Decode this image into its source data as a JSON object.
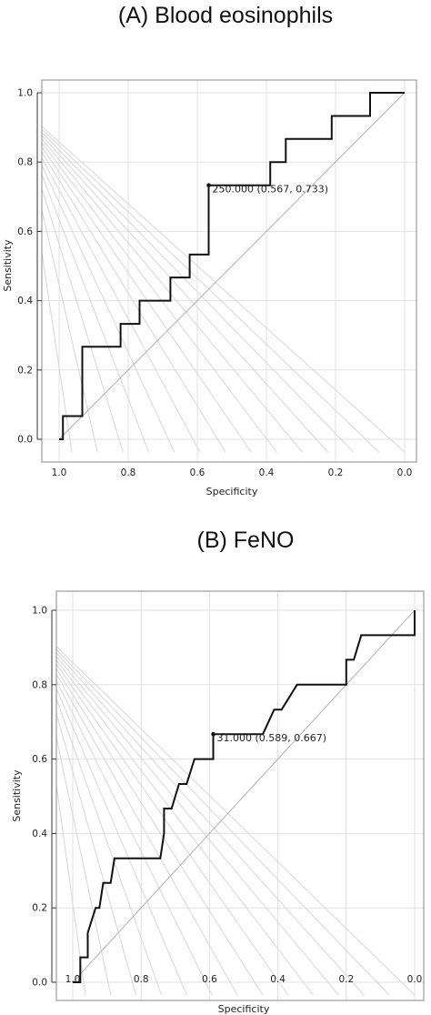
{
  "chart_data": [
    {
      "type": "line",
      "title": "(A) Blood eosinophils",
      "xlabel": "Specificity",
      "ylabel": "Sensitivity",
      "x_reversed": true,
      "xlim": [
        1.0,
        0.0
      ],
      "ylim": [
        0.0,
        1.0
      ],
      "x_ticks": [
        "1.0",
        "0.8",
        "0.6",
        "0.4",
        "0.2",
        "0.0"
      ],
      "y_ticks": [
        "0.0",
        "0.2",
        "0.4",
        "0.6",
        "0.8",
        "1.0"
      ],
      "grid": true,
      "series": [
        {
          "specificity": [
            1.0,
            0.989,
            0.989,
            0.933,
            0.933,
            0.822,
            0.822,
            0.767,
            0.767,
            0.678,
            0.678,
            0.622,
            0.622,
            0.6,
            0.6,
            0.567,
            0.567,
            0.389,
            0.389,
            0.344,
            0.344,
            0.211,
            0.211,
            0.1,
            0.1,
            0.0
          ],
          "sensitivity": [
            0.0,
            0.0,
            0.067,
            0.067,
            0.267,
            0.267,
            0.333,
            0.333,
            0.4,
            0.4,
            0.467,
            0.467,
            0.533,
            0.533,
            0.533,
            0.533,
            0.733,
            0.733,
            0.8,
            0.8,
            0.867,
            0.867,
            0.933,
            0.933,
            1.0,
            1.0
          ]
        }
      ],
      "optimal_point": {
        "specificity": 0.567,
        "sensitivity": 0.733
      },
      "annotation": "250.000 (0.567, 0.733)"
    },
    {
      "type": "line",
      "title": "(B) FeNO",
      "xlabel": "Specificity",
      "ylabel": "Sensitivity",
      "x_reversed": true,
      "xlim": [
        1.0,
        0.0
      ],
      "ylim": [
        0.0,
        1.0
      ],
      "x_ticks": [
        "1.0",
        "0.8",
        "0.6",
        "0.4",
        "0.2",
        "0.0"
      ],
      "y_ticks": [
        "0.0",
        "0.2",
        "0.4",
        "0.6",
        "0.8",
        "1.0"
      ],
      "grid": true,
      "series": [
        {
          "specificity": [
            1.0,
            0.978,
            0.978,
            0.956,
            0.956,
            0.933,
            0.922,
            0.911,
            0.889,
            0.878,
            0.867,
            0.744,
            0.733,
            0.733,
            0.711,
            0.689,
            0.667,
            0.644,
            0.633,
            0.622,
            0.589,
            0.589,
            0.444,
            0.411,
            0.389,
            0.344,
            0.2,
            0.2,
            0.178,
            0.156,
            0.111,
            0.0,
            0.0
          ],
          "sensitivity": [
            0.0,
            0.0,
            0.067,
            0.067,
            0.133,
            0.2,
            0.2,
            0.267,
            0.267,
            0.333,
            0.333,
            0.333,
            0.4,
            0.467,
            0.467,
            0.533,
            0.533,
            0.6,
            0.6,
            0.6,
            0.6,
            0.667,
            0.667,
            0.733,
            0.733,
            0.8,
            0.8,
            0.867,
            0.867,
            0.933,
            0.933,
            0.933,
            1.0
          ]
        }
      ],
      "optimal_point": {
        "specificity": 0.589,
        "sensitivity": 0.667
      },
      "annotation": "31.000 (0.589, 0.667)"
    }
  ]
}
